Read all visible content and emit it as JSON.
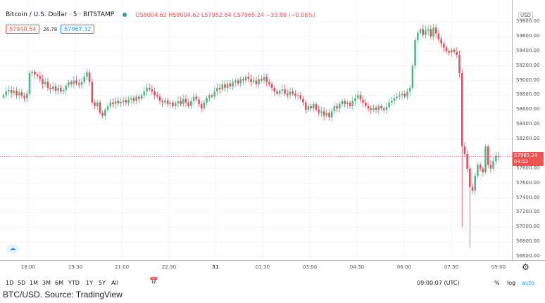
{
  "legend": {
    "symbol": "Bitcoin / U.S. Dollar · 5 · BITSTAMP",
    "ohlc": "O58004.62 H58004.62 L57952.84 C57965.24 −33.88 (−0.06%)",
    "bid": "57940.54",
    "spread": "26.78",
    "ask": "57967.32"
  },
  "price_axis": {
    "currency": "USD",
    "labels": [
      "59800.00",
      "59600.00",
      "59400.00",
      "59200.00",
      "59000.00",
      "58800.00",
      "58600.00",
      "58400.00",
      "58200.00",
      "57800.00",
      "57600.00",
      "57400.00",
      "57200.00",
      "57000.00",
      "56800.00",
      "56600.00"
    ],
    "last_price": "57965.24",
    "countdown": "04:52"
  },
  "time_axis": {
    "labels": [
      "18:00",
      "19:30",
      "21:00",
      "22:30",
      "31",
      "01:30",
      "03:00",
      "04:30",
      "06:00",
      "07:30",
      "09:00"
    ]
  },
  "toolbar": {
    "ranges": [
      "1D",
      "5D",
      "1M",
      "3M",
      "6M",
      "YTD",
      "1Y",
      "5Y",
      "All"
    ],
    "clock": "09:00:07 (UTC)",
    "percent": "%",
    "log": "log",
    "auto": "auto"
  },
  "caption": "BTC/USD. Source: TradingView",
  "colors": {
    "up": "#53b987",
    "down": "#eb4d5c",
    "accent": "#2196f3"
  },
  "icons": {
    "settings": "gear-icon",
    "date_range": "calendar-goto-icon",
    "logo": "tradingview-logo-icon"
  },
  "chart_data": {
    "type": "candlestick",
    "interval": "5 minutes",
    "start_time": "17:10",
    "ylim": [
      56600,
      59800
    ],
    "closes": [
      58800,
      58850,
      58870,
      58830,
      58860,
      58800,
      58840,
      58790,
      58760,
      58820,
      59100,
      59120,
      59080,
      59060,
      59020,
      58950,
      58980,
      58900,
      58880,
      58920,
      58860,
      58900,
      58850,
      58870,
      58930,
      58980,
      58950,
      59000,
      58960,
      58940,
      58980,
      59050,
      59110,
      58980,
      58700,
      58650,
      58700,
      58560,
      58520,
      58600,
      58650,
      58700,
      58680,
      58720,
      58690,
      58710,
      58730,
      58700,
      58740,
      58760,
      58720,
      58780,
      58750,
      58800,
      58850,
      58900,
      58880,
      58850,
      58800,
      58780,
      58720,
      58700,
      58730,
      58680,
      58700,
      58650,
      58690,
      58720,
      58680,
      58750,
      58700,
      58650,
      58720,
      58780,
      58740,
      58680,
      58620,
      58700,
      58760,
      58800,
      58780,
      58850,
      58900,
      58880,
      58950,
      58900,
      58960,
      58920,
      58980,
      59000,
      58960,
      59020,
      59000,
      59050,
      59020,
      58980,
      59000,
      58950,
      59020,
      59000,
      59050,
      58980,
      58950,
      58900,
      58850,
      58820,
      58860,
      58880,
      58820,
      58800,
      58850,
      58820,
      58790,
      58800,
      58750,
      58700,
      58600,
      58650,
      58620,
      58680,
      58600,
      58560,
      58580,
      58520,
      58560,
      58500,
      58580,
      58650,
      58620,
      58680,
      58720,
      58680,
      58700,
      58650,
      58720,
      58760,
      58800,
      58740,
      58700,
      58650,
      58620,
      58600,
      58630,
      58600,
      58650,
      58620,
      58600,
      58640,
      58700,
      58720,
      58760,
      58780,
      58800,
      58820,
      58780,
      58850,
      58900,
      59200,
      59550,
      59650,
      59700,
      59620,
      59680,
      59700,
      59600,
      59720,
      59640,
      59560,
      59500,
      59450,
      59400,
      59380,
      59420,
      59390,
      59350,
      59100,
      58100,
      58000,
      57800,
      57550,
      57500,
      57700,
      57850,
      57800,
      57750,
      58100,
      57850,
      57800,
      57900,
      57970,
      57965
    ],
    "wick_lows": {
      "176": 57000,
      "179": 56720
    }
  }
}
